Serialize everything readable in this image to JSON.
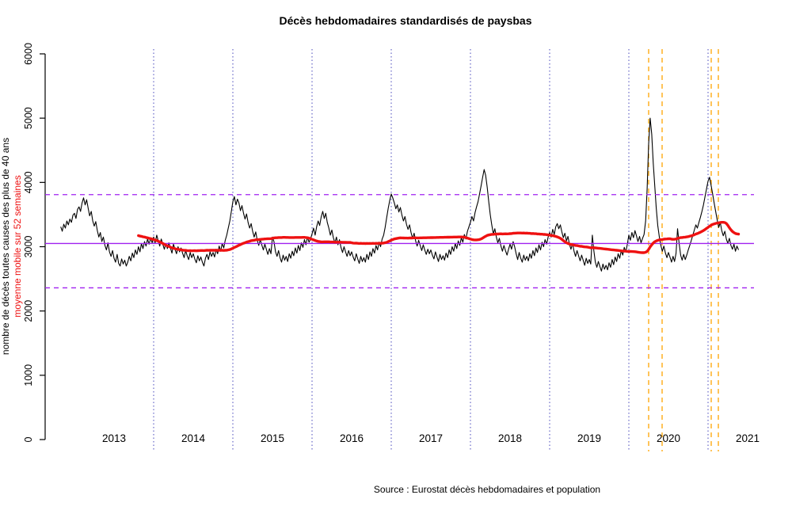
{
  "title": "Décès hebdomadaires standardisés de paysbas",
  "caption": "Source : Eurostat décès hebdomadaires et population",
  "y_axis": {
    "label_primary": "nombre de décès toutes causes des plus de 40 ans",
    "label_secondary": "moyenne mobile sur 52 semaines",
    "ticks": [
      0,
      1000,
      2000,
      3000,
      4000,
      5000,
      6000
    ]
  },
  "colors": {
    "weekly_line": "#000000",
    "moving_average": "#ee1111",
    "reference_purple": "#a020f0",
    "year_gridline": "#4747bb",
    "event_line": "#ffa500"
  },
  "chart_data": {
    "type": "line",
    "title": "Décès hebdomadaires standardisés de paysbas",
    "xlabel": "",
    "ylabel": "nombre de décès toutes causes des plus de 40 ans",
    "ylim": [
      0,
      6000
    ],
    "y_ticks": [
      0,
      1000,
      2000,
      3000,
      4000,
      5000,
      6000
    ],
    "x_year_labels": [
      2013,
      2014,
      2015,
      2016,
      2017,
      2018,
      2019,
      2020,
      2021
    ],
    "year_boundary_lines": [
      2014,
      2015,
      2016,
      2017,
      2018,
      2019,
      2020,
      2021
    ],
    "event_lines_orange": [
      2020.25,
      2020.42,
      2021.04,
      2021.13
    ],
    "mean_line": 3050,
    "upper_band": 3810,
    "lower_band": 2360,
    "x_start_year": 2012.827,
    "x_step_year": 0.01923077,
    "grid": "off",
    "legend_position": "none",
    "series": [
      {
        "name": "décès hebdomadaires toutes causes 40+",
        "color": "#000000",
        "values": [
          3310,
          3240,
          3350,
          3290,
          3400,
          3340,
          3430,
          3380,
          3490,
          3520,
          3440,
          3580,
          3620,
          3550,
          3680,
          3760,
          3650,
          3730,
          3600,
          3480,
          3550,
          3400,
          3320,
          3390,
          3250,
          3150,
          3220,
          3080,
          3150,
          3020,
          2950,
          3060,
          2920,
          2850,
          2940,
          2820,
          2760,
          2880,
          2740,
          2700,
          2810,
          2730,
          2790,
          2700,
          2760,
          2850,
          2780,
          2900,
          2830,
          2950,
          2880,
          3000,
          2920,
          3050,
          2970,
          3080,
          3010,
          3120,
          3040,
          3130,
          3060,
          3150,
          3060,
          3180,
          3090,
          3010,
          3120,
          3040,
          2960,
          3050,
          2970,
          3060,
          2980,
          2900,
          3040,
          2960,
          2890,
          3000,
          2920,
          2980,
          2900,
          2830,
          2940,
          2860,
          2800,
          2910,
          2830,
          2890,
          2810,
          2750,
          2860,
          2780,
          2840,
          2760,
          2700,
          2820,
          2880,
          2800,
          2920,
          2850,
          2910,
          2840,
          2960,
          2890,
          3010,
          2930,
          3050,
          2980,
          3100,
          3180,
          3290,
          3400,
          3550,
          3700,
          3780,
          3650,
          3740,
          3680,
          3560,
          3640,
          3520,
          3430,
          3510,
          3380,
          3290,
          3360,
          3240,
          3150,
          3230,
          3100,
          3020,
          3110,
          3030,
          2950,
          3040,
          2960,
          2880,
          2970,
          2890,
          3150,
          3080,
          2920,
          2850,
          2940,
          2830,
          2760,
          2870,
          2790,
          2850,
          2770,
          2890,
          2820,
          2930,
          2860,
          2980,
          2900,
          3020,
          2940,
          3060,
          2990,
          3110,
          3030,
          3150,
          3070,
          3120,
          3200,
          3290,
          3180,
          3310,
          3400,
          3330,
          3460,
          3550,
          3440,
          3520,
          3380,
          3290,
          3180,
          3260,
          3140,
          3060,
          3150,
          3030,
          3110,
          2990,
          2910,
          3000,
          2920,
          2850,
          2940,
          2860,
          2920,
          2840,
          2780,
          2890,
          2810,
          2740,
          2850,
          2770,
          2830,
          2760,
          2880,
          2800,
          2920,
          2850,
          2970,
          2900,
          3020,
          2950,
          3070,
          3000,
          3120,
          3180,
          3300,
          3450,
          3600,
          3720,
          3820,
          3760,
          3680,
          3590,
          3650,
          3540,
          3610,
          3490,
          3400,
          3470,
          3350,
          3270,
          3340,
          3220,
          3130,
          3210,
          3090,
          3010,
          3100,
          3020,
          2940,
          3030,
          2950,
          2880,
          2960,
          2890,
          2950,
          2870,
          2810,
          2920,
          2840,
          2770,
          2880,
          2800,
          2860,
          2790,
          2900,
          2830,
          2950,
          2880,
          3000,
          2930,
          3050,
          2970,
          3090,
          3020,
          3140,
          3070,
          3190,
          3120,
          3240,
          3310,
          3380,
          3470,
          3400,
          3530,
          3620,
          3700,
          3820,
          3950,
          4080,
          4200,
          4110,
          3920,
          3700,
          3500,
          3340,
          3200,
          3280,
          3150,
          3060,
          3130,
          3010,
          2930,
          3020,
          2940,
          2870,
          2960,
          3040,
          2960,
          3080,
          3000,
          2890,
          2800,
          2910,
          2820,
          2760,
          2870,
          2790,
          2850,
          2780,
          2890,
          2820,
          2940,
          2860,
          2980,
          2910,
          3030,
          2950,
          3070,
          3000,
          3110,
          3040,
          3150,
          3220,
          3150,
          3270,
          3190,
          3310,
          3360,
          3280,
          3340,
          3230,
          3140,
          3210,
          3090,
          3160,
          3040,
          2960,
          3050,
          2930,
          2850,
          2940,
          2860,
          2780,
          2870,
          2790,
          2710,
          2820,
          2740,
          2800,
          2730,
          3180,
          2940,
          2760,
          2680,
          2770,
          2690,
          2620,
          2730,
          2650,
          2710,
          2640,
          2750,
          2680,
          2800,
          2720,
          2840,
          2770,
          2890,
          2820,
          2940,
          2870,
          2990,
          2920,
          3040,
          3180,
          3100,
          3220,
          3140,
          3250,
          3170,
          3080,
          3160,
          3060,
          3130,
          3190,
          3400,
          3900,
          4600,
          5000,
          4750,
          4300,
          3950,
          3600,
          3330,
          3150,
          3020,
          2930,
          3010,
          2900,
          2830,
          2910,
          2840,
          2760,
          2850,
          2770,
          2900,
          3280,
          3050,
          2870,
          2790,
          2880,
          2800,
          2870,
          2950,
          3020,
          3100,
          3180,
          3260,
          3340,
          3290,
          3380,
          3460,
          3550,
          3650,
          3780,
          3900,
          4020,
          4080,
          3950,
          3820,
          3680,
          3550,
          3420,
          3300,
          3380,
          3250,
          3170,
          3240,
          3120,
          3050,
          3130,
          3020,
          2960,
          3040,
          2930,
          3010,
          2950
        ]
      },
      {
        "name": "moyenne mobile sur 52 semaines",
        "color": "#ee1111",
        "derived_from": "décès hebdomadaires toutes causes 40+",
        "window_weeks": 52
      }
    ]
  }
}
